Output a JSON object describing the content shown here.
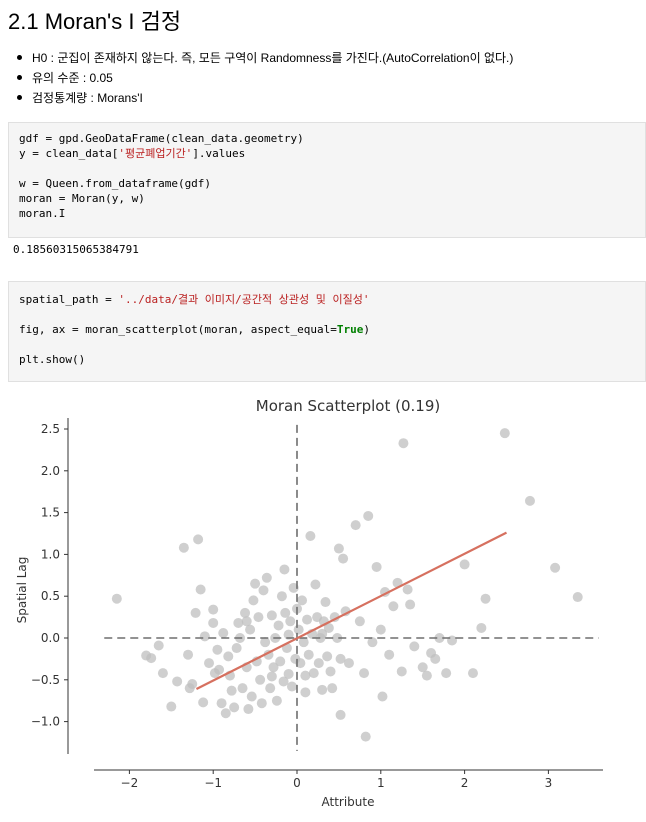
{
  "heading": "2.1 Moran's I 검정",
  "bullets": [
    "H0 : 군집이 존재하지 않는다. 즉, 모든 구역이 Randomness를 가진다.(AutoCorrelation이 없다.)",
    "유의 수준 : 0.05",
    "검정통계량 : Morans'I"
  ],
  "cell1": {
    "l1a": "gdf = gpd.GeoDataFrame(clean_data.geometry)",
    "l2a": "y = clean_data[",
    "l2s": "'평균폐업기간'",
    "l2b": "].values",
    "l3": "w = Queen.from_dataframe(gdf)",
    "l4": "moran = Moran(y, w)",
    "l5": "moran.I"
  },
  "output1": "0.18560315065384791",
  "cell2": {
    "l1a": "spatial_path = ",
    "l1s": "'../data/결과 이미지/공간적 상관성 및 이질성'",
    "l2a": "fig, ax = moran_scatterplot(moran, aspect_equal=",
    "l2k": "True",
    "l2b": ")",
    "l3": "plt.show()"
  },
  "chart_data": {
    "type": "scatter",
    "title": "Moran Scatterplot (0.19)",
    "xlabel": "Attribute",
    "ylabel": "Spatial Lag",
    "xlim": [
      -2.4,
      3.65
    ],
    "ylim": [
      -1.37,
      2.6
    ],
    "xticks": [
      -2,
      -1,
      0,
      1,
      2,
      3
    ],
    "yticks": [
      -1.0,
      -0.5,
      0.0,
      0.5,
      1.0,
      1.5,
      2.0,
      2.5
    ],
    "ytick_labels": [
      "−1.0",
      "−0.5",
      "0.0",
      "0.5",
      "1.0",
      "1.5",
      "2.0",
      "2.5"
    ],
    "xtick_labels": [
      "−2",
      "−1",
      "0",
      "1",
      "2",
      "3"
    ],
    "point_color": "#bfbfbf",
    "fit_line_color": "#d6705f",
    "fit_line": {
      "x": [
        -1.2,
        2.5
      ],
      "y": [
        -0.61,
        1.26
      ]
    },
    "grid": false,
    "points": [
      [
        -2.15,
        0.47
      ],
      [
        -1.8,
        -0.21
      ],
      [
        -1.74,
        -0.24
      ],
      [
        -1.65,
        -0.09
      ],
      [
        -1.6,
        -0.42
      ],
      [
        -1.5,
        -0.82
      ],
      [
        -1.43,
        -0.52
      ],
      [
        -1.35,
        1.08
      ],
      [
        -1.3,
        -0.2
      ],
      [
        -1.28,
        -0.6
      ],
      [
        -1.25,
        -0.55
      ],
      [
        -1.21,
        0.3
      ],
      [
        -1.18,
        1.18
      ],
      [
        -1.15,
        0.58
      ],
      [
        -1.12,
        -0.77
      ],
      [
        -1.1,
        0.02
      ],
      [
        -1.05,
        -0.3
      ],
      [
        -1.0,
        0.34
      ],
      [
        -1.0,
        0.18
      ],
      [
        -0.98,
        -0.42
      ],
      [
        -0.95,
        -0.14
      ],
      [
        -0.93,
        -0.38
      ],
      [
        -0.9,
        -0.78
      ],
      [
        -0.88,
        0.06
      ],
      [
        -0.85,
        -0.9
      ],
      [
        -0.82,
        -0.22
      ],
      [
        -0.8,
        -0.45
      ],
      [
        -0.78,
        -0.63
      ],
      [
        -0.75,
        -0.83
      ],
      [
        -0.72,
        -0.12
      ],
      [
        -0.7,
        0.18
      ],
      [
        -0.68,
        0.0
      ],
      [
        -0.65,
        -0.6
      ],
      [
        -0.62,
        0.3
      ],
      [
        -0.6,
        -0.35
      ],
      [
        -0.58,
        -0.85
      ],
      [
        -0.56,
        0.1
      ],
      [
        -0.54,
        -0.7
      ],
      [
        -0.52,
        0.45
      ],
      [
        -0.5,
        0.65
      ],
      [
        -0.48,
        -0.28
      ],
      [
        -0.46,
        0.25
      ],
      [
        -0.44,
        -0.5
      ],
      [
        -0.42,
        -0.78
      ],
      [
        -0.4,
        0.57
      ],
      [
        -0.38,
        -0.05
      ],
      [
        -0.36,
        0.72
      ],
      [
        -0.34,
        -0.2
      ],
      [
        -0.32,
        -0.6
      ],
      [
        -0.3,
        0.27
      ],
      [
        -0.28,
        -0.35
      ],
      [
        -0.26,
        0.0
      ],
      [
        -0.24,
        -0.75
      ],
      [
        -0.22,
        0.15
      ],
      [
        -0.2,
        -0.28
      ],
      [
        -0.18,
        0.5
      ],
      [
        -0.16,
        -0.52
      ],
      [
        -0.14,
        0.3
      ],
      [
        -0.12,
        -0.12
      ],
      [
        -0.1,
        0.04
      ],
      [
        -0.08,
        0.2
      ],
      [
        -0.06,
        -0.58
      ],
      [
        -0.04,
        0.6
      ],
      [
        -0.02,
        -0.25
      ],
      [
        0.0,
        0.35
      ],
      [
        0.02,
        0.1
      ],
      [
        0.04,
        -0.3
      ],
      [
        0.06,
        0.45
      ],
      [
        0.08,
        -0.05
      ],
      [
        0.1,
        -0.65
      ],
      [
        0.12,
        0.22
      ],
      [
        0.14,
        -0.2
      ],
      [
        0.16,
        1.22
      ],
      [
        0.18,
        0.05
      ],
      [
        0.2,
        -0.42
      ],
      [
        0.22,
        0.64
      ],
      [
        0.24,
        0.25
      ],
      [
        0.26,
        -0.3
      ],
      [
        0.28,
        0.0
      ],
      [
        0.3,
        -0.62
      ],
      [
        0.32,
        0.2
      ],
      [
        0.34,
        0.43
      ],
      [
        0.36,
        -0.22
      ],
      [
        0.38,
        0.12
      ],
      [
        0.4,
        -0.4
      ],
      [
        0.42,
        -0.6
      ],
      [
        0.45,
        0.25
      ],
      [
        0.48,
        0.0
      ],
      [
        0.5,
        1.07
      ],
      [
        0.52,
        -0.25
      ],
      [
        0.55,
        0.95
      ],
      [
        0.58,
        0.32
      ],
      [
        0.62,
        -0.3
      ],
      [
        0.7,
        1.35
      ],
      [
        0.75,
        0.2
      ],
      [
        0.8,
        -0.42
      ],
      [
        0.85,
        1.46
      ],
      [
        0.9,
        -0.05
      ],
      [
        0.95,
        0.85
      ],
      [
        1.0,
        0.1
      ],
      [
        1.02,
        -0.7
      ],
      [
        1.05,
        0.55
      ],
      [
        1.1,
        -0.2
      ],
      [
        1.15,
        0.38
      ],
      [
        1.2,
        0.66
      ],
      [
        1.25,
        -0.4
      ],
      [
        1.27,
        2.33
      ],
      [
        1.32,
        0.58
      ],
      [
        1.35,
        0.4
      ],
      [
        1.4,
        -0.1
      ],
      [
        1.5,
        -0.35
      ],
      [
        1.55,
        -0.45
      ],
      [
        1.6,
        -0.18
      ],
      [
        1.65,
        -0.25
      ],
      [
        1.7,
        0.0
      ],
      [
        1.78,
        -0.42
      ],
      [
        1.85,
        -0.03
      ],
      [
        2.0,
        0.88
      ],
      [
        2.1,
        -0.42
      ],
      [
        2.25,
        0.47
      ],
      [
        2.48,
        2.45
      ],
      [
        2.78,
        1.64
      ],
      [
        3.08,
        0.84
      ],
      [
        3.35,
        0.49
      ],
      [
        2.2,
        0.12
      ],
      [
        0.82,
        -1.18
      ],
      [
        0.52,
        -0.92
      ],
      [
        0.1,
        -0.45
      ],
      [
        -0.1,
        -0.43
      ],
      [
        -0.3,
        -0.46
      ],
      [
        0.3,
        0.05
      ],
      [
        -0.6,
        0.2
      ],
      [
        -0.15,
        0.82
      ]
    ]
  }
}
